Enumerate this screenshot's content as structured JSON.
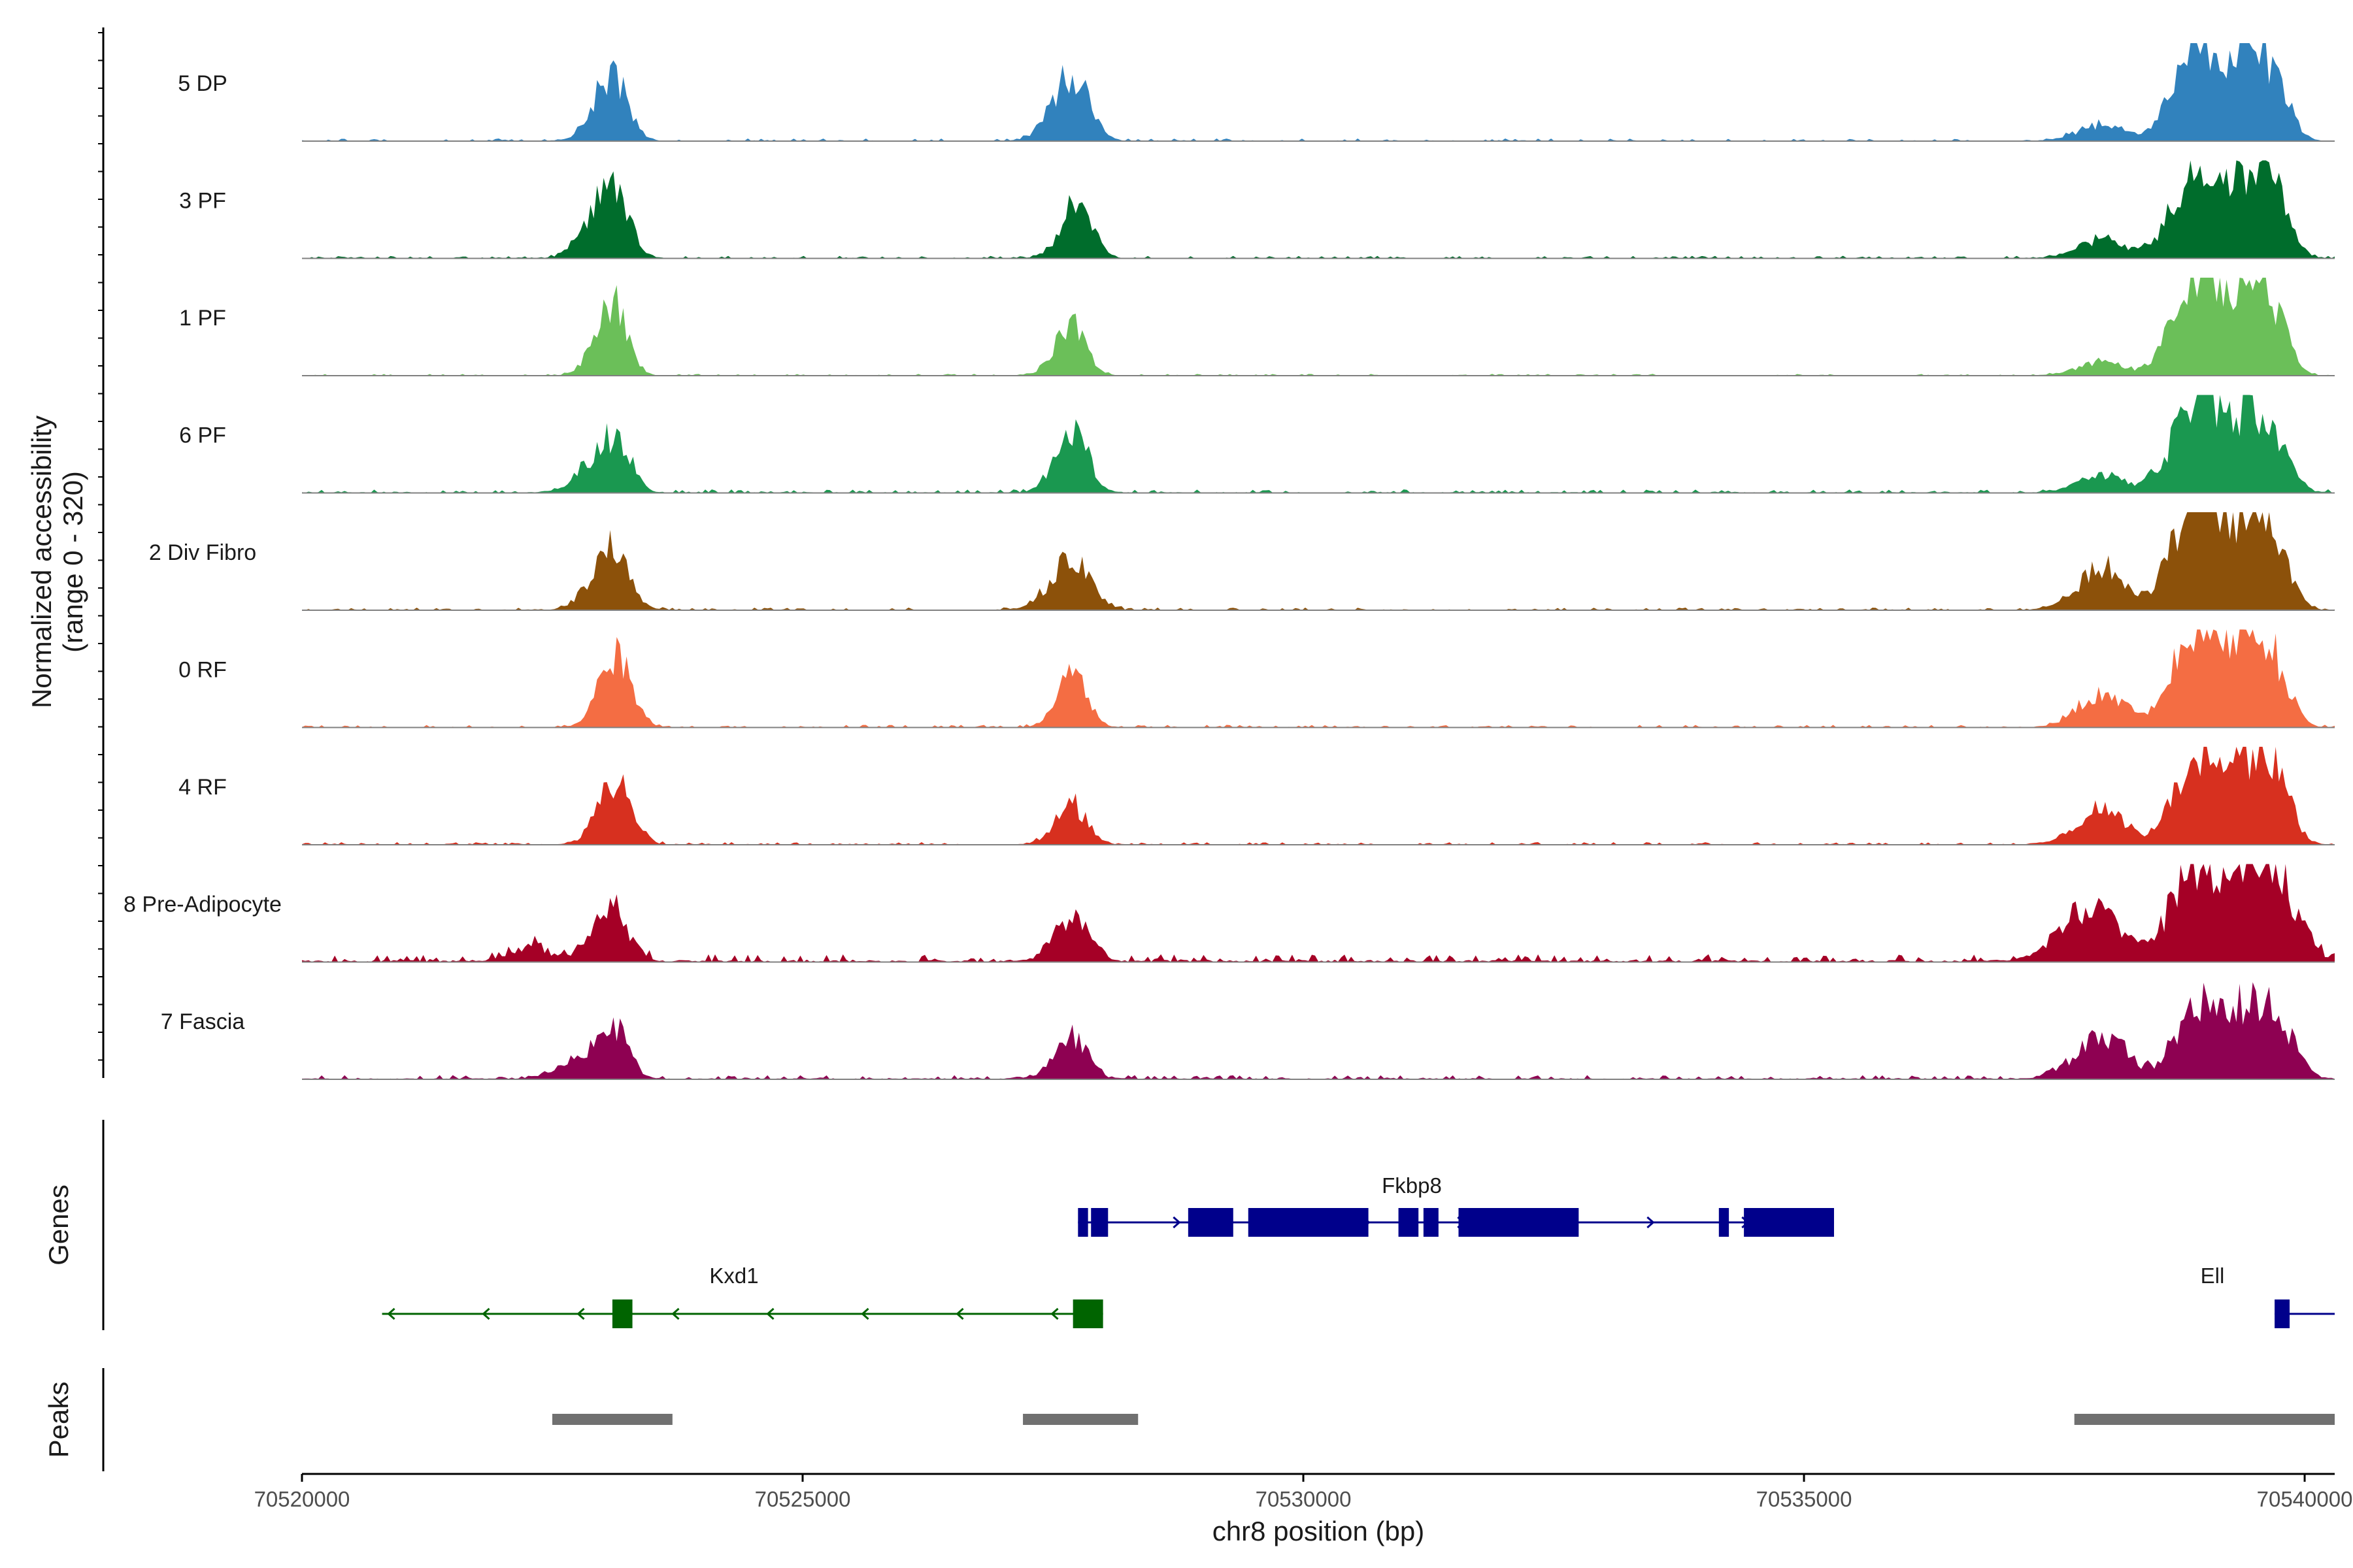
{
  "chart_data": {
    "type": "area",
    "title": "",
    "chromosome": "chr8",
    "xlabel": "chr8 position (bp)",
    "ylabel_line1": "Normalized accessibility",
    "ylabel_line2": "(range 0 - 320)",
    "y_range": [
      0,
      320
    ],
    "xlim": [
      70520000,
      70540300
    ],
    "xticks": [
      70520000,
      70525000,
      70530000,
      70535000,
      70540000
    ],
    "xtick_labels": [
      "70520000",
      "70525000",
      "70530000",
      "70535000",
      "70540000"
    ],
    "track_range_bp": [
      70520000,
      70540300
    ],
    "peak_profile_bp": [
      [
        70522900,
        70523300,
        70523700,
        70524100
      ],
      [
        70527500,
        70527800,
        70528100,
        70528500
      ],
      [
        70538000,
        70538300,
        70538700,
        70539000
      ],
      [
        70539200,
        70539500,
        70539800,
        70540000
      ]
    ],
    "series": [
      {
        "name": "5 DP",
        "color": "#3182BD",
        "peaks": [
          [
            70523100,
            85,
            180,
            150
          ],
          [
            70527700,
            85,
            200,
            160
          ],
          [
            70538000,
            22,
            250,
            200
          ],
          [
            70538900,
            110,
            220,
            180
          ],
          [
            70539400,
            95,
            280,
            220
          ],
          [
            70539700,
            55,
            180,
            150
          ]
        ],
        "noise": 3,
        "seed": 11
      },
      {
        "name": "3 PF",
        "color": "#006D2C",
        "peaks": [
          [
            70522950,
            45,
            180,
            150
          ],
          [
            70523150,
            70,
            160,
            140
          ],
          [
            70527750,
            72,
            160,
            140
          ],
          [
            70538000,
            25,
            250,
            200
          ],
          [
            70538900,
            105,
            230,
            190
          ],
          [
            70539400,
            95,
            280,
            230
          ],
          [
            70539700,
            60,
            170,
            150
          ]
        ],
        "noise": 3,
        "seed": 23
      },
      {
        "name": "1 PF",
        "color": "#6BBF59",
        "peaks": [
          [
            70523100,
            95,
            170,
            140
          ],
          [
            70527700,
            65,
            170,
            140
          ],
          [
            70538000,
            18,
            250,
            200
          ],
          [
            70538900,
            115,
            220,
            180
          ],
          [
            70539350,
            100,
            280,
            230
          ],
          [
            70539700,
            65,
            170,
            140
          ]
        ],
        "noise": 2,
        "seed": 37
      },
      {
        "name": "6 PF",
        "color": "#1A9850",
        "peaks": [
          [
            70522900,
            25,
            200,
            160
          ],
          [
            70523150,
            65,
            170,
            140
          ],
          [
            70527700,
            75,
            170,
            150
          ],
          [
            70538000,
            22,
            250,
            200
          ],
          [
            70538900,
            100,
            240,
            190
          ],
          [
            70539400,
            95,
            300,
            240
          ],
          [
            70539700,
            40,
            180,
            150
          ]
        ],
        "noise": 4,
        "seed": 41
      },
      {
        "name": "2 Div Fibro",
        "color": "#8C510A",
        "peaks": [
          [
            70523100,
            80,
            200,
            160
          ],
          [
            70527700,
            65,
            220,
            180
          ],
          [
            70538000,
            55,
            250,
            200
          ],
          [
            70538900,
            125,
            230,
            190
          ],
          [
            70539400,
            110,
            290,
            240
          ],
          [
            70539700,
            50,
            180,
            150
          ]
        ],
        "noise": 3,
        "seed": 53
      },
      {
        "name": "0 RF",
        "color": "#F46D43",
        "peaks": [
          [
            70523150,
            95,
            170,
            140
          ],
          [
            70527700,
            65,
            160,
            140
          ],
          [
            70538000,
            45,
            250,
            200
          ],
          [
            70538900,
            115,
            220,
            180
          ],
          [
            70539400,
            100,
            290,
            230
          ],
          [
            70539700,
            55,
            170,
            150
          ]
        ],
        "noise": 3,
        "seed": 67
      },
      {
        "name": "4 RF",
        "color": "#D7301F",
        "peaks": [
          [
            70523150,
            85,
            180,
            150
          ],
          [
            70527700,
            50,
            170,
            140
          ],
          [
            70538000,
            45,
            250,
            200
          ],
          [
            70538900,
            95,
            220,
            180
          ],
          [
            70539400,
            95,
            290,
            240
          ],
          [
            70539700,
            75,
            170,
            150
          ]
        ],
        "noise": 3,
        "seed": 79
      },
      {
        "name": "8 Pre-Adipocyte",
        "color": "#A50026",
        "peaks": [
          [
            70522300,
            20,
            200,
            170
          ],
          [
            70523100,
            70,
            200,
            160
          ],
          [
            70527700,
            60,
            180,
            150
          ],
          [
            70537900,
            75,
            300,
            240
          ],
          [
            70538900,
            105,
            250,
            200
          ],
          [
            70539500,
            145,
            300,
            250
          ],
          [
            70539900,
            35,
            170,
            150
          ]
        ],
        "noise": 9,
        "seed": 97
      },
      {
        "name": "7 Fascia",
        "color": "#8E0152",
        "peaks": [
          [
            70522700,
            20,
            200,
            170
          ],
          [
            70523100,
            70,
            180,
            150
          ],
          [
            70527700,
            55,
            180,
            150
          ],
          [
            70538000,
            55,
            280,
            220
          ],
          [
            70538900,
            75,
            220,
            180
          ],
          [
            70539450,
            100,
            300,
            250
          ],
          [
            70539800,
            30,
            170,
            150
          ]
        ],
        "noise": 5,
        "seed": 83
      }
    ],
    "genes_track_label": "Genes",
    "peaks_track_label": "Peaks",
    "genes": [
      {
        "name": "Fkbp8",
        "strand": "+",
        "start": 70527750,
        "end": 70535300,
        "color": "#00008B",
        "exons": [
          [
            70527750,
            70527850
          ],
          [
            70527880,
            70528050
          ],
          [
            70528850,
            70529300
          ],
          [
            70529450,
            70530650
          ],
          [
            70530950,
            70531150
          ],
          [
            70531200,
            70531350
          ],
          [
            70531550,
            70532750
          ],
          [
            70534150,
            70534250
          ],
          [
            70534400,
            70535300
          ]
        ]
      },
      {
        "name": "Kxd1",
        "strand": "-",
        "start": 70520800,
        "end": 70528000,
        "color": "#006400",
        "exons": [
          [
            70523100,
            70523300
          ],
          [
            70527700,
            70528000
          ]
        ]
      },
      {
        "name": "Ell",
        "strand": "+",
        "start": 70539700,
        "end": 70540300,
        "color": "#00008B",
        "exons": [
          [
            70539700,
            70539850
          ]
        ]
      }
    ],
    "peaks": [
      [
        70522500,
        70523700
      ],
      [
        70527200,
        70528350
      ],
      [
        70537700,
        70540300
      ]
    ],
    "peak_color": "#707070"
  }
}
